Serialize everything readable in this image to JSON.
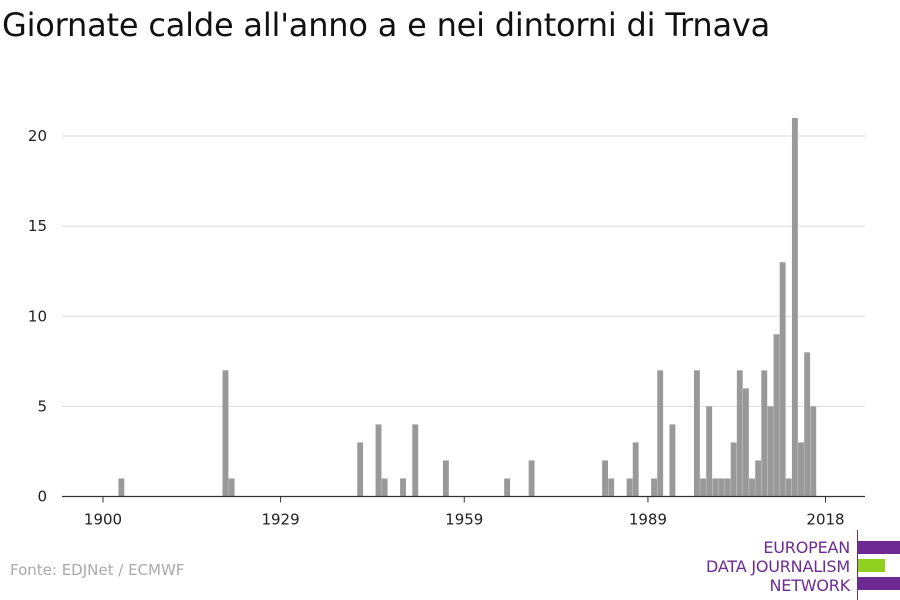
{
  "title": "Giornate calde all'anno a e nei dintorni di Trnava",
  "source": "Fonte: EDJNet / ECMWF",
  "logo": {
    "lines": [
      "EUROPEAN",
      "DATA JOURNALISM",
      "NETWORK"
    ],
    "colors": {
      "purple": "#6d2a93",
      "green": "#8fd11e"
    }
  },
  "chart_data": {
    "type": "bar",
    "title": "Giornate calde all'anno a e nei dintorni di Trnava",
    "xlabel": "",
    "ylabel": "",
    "xlim": [
      1894,
      2025
    ],
    "ylim": [
      0,
      22
    ],
    "xticks": [
      1900,
      1929,
      1959,
      1989,
      2018
    ],
    "yticks": [
      0,
      5,
      10,
      15,
      20
    ],
    "grid": "horizontal",
    "bar_color": "#999999",
    "x": [
      1903,
      1920,
      1921,
      1942,
      1945,
      1946,
      1949,
      1951,
      1956,
      1966,
      1970,
      1982,
      1983,
      1986,
      1987,
      1990,
      1991,
      1993,
      1997,
      1998,
      1999,
      2000,
      2001,
      2002,
      2003,
      2004,
      2005,
      2006,
      2007,
      2008,
      2009,
      2010,
      2011,
      2012,
      2013,
      2014,
      2015,
      2016,
      2017,
      2018
    ],
    "values": [
      1,
      7,
      1,
      3,
      4,
      1,
      1,
      4,
      2,
      1,
      2,
      2,
      1,
      1,
      3,
      1,
      7,
      4,
      7,
      1,
      5,
      1,
      1,
      1,
      3,
      7,
      6,
      1,
      2,
      7,
      5,
      9,
      13,
      1,
      21,
      3,
      8,
      5,
      0,
      0
    ]
  }
}
